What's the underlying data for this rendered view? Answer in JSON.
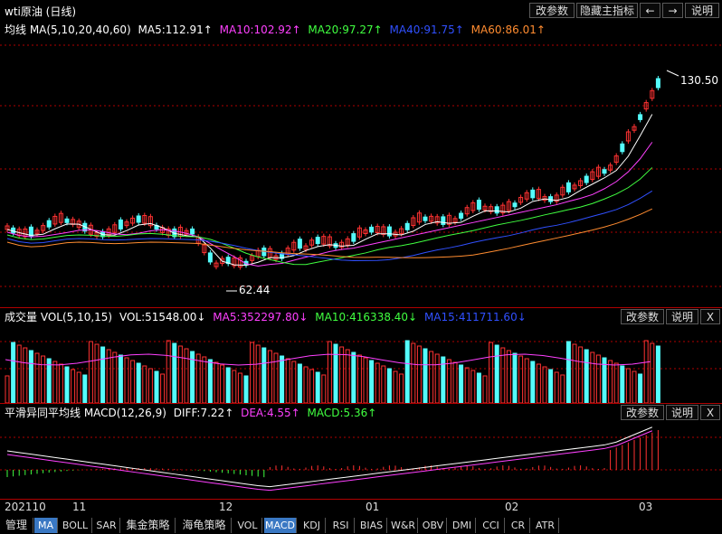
{
  "window": {
    "title": "wti原油 (日线)",
    "buttons": [
      "改参数",
      "隐藏主指标",
      "←",
      "→",
      "说明"
    ]
  },
  "main_panel": {
    "legend": [
      {
        "text": "均线 MA(5,10,20,40,60)",
        "color": "#ffffff"
      },
      {
        "text": "MA5:112.91↑",
        "color": "#ffffff"
      },
      {
        "text": "MA10:102.92↑",
        "color": "#ff40ff"
      },
      {
        "text": "MA20:97.27↑",
        "color": "#40ff40"
      },
      {
        "text": "MA40:91.75↑",
        "color": "#3050ff"
      },
      {
        "text": "MA60:86.01↑",
        "color": "#ff8c30"
      }
    ],
    "high_label": "130.50",
    "low_label": "62.44"
  },
  "volume_panel": {
    "legend": [
      {
        "text": "成交量 VOL(5,10,15)",
        "color": "#ffffff"
      },
      {
        "text": "VOL:51548.00↓",
        "color": "#ffffff"
      },
      {
        "text": "MA5:352297.80↓",
        "color": "#ff40ff"
      },
      {
        "text": "MA10:416338.40↓",
        "color": "#40ff40"
      },
      {
        "text": "MA15:411711.60↓",
        "color": "#3050ff"
      }
    ],
    "buttons": [
      "改参数",
      "说明",
      "X"
    ]
  },
  "macd_panel": {
    "legend": [
      {
        "text": "平滑异同平均线 MACD(12,26,9)",
        "color": "#ffffff"
      },
      {
        "text": "DIFF:7.22↑",
        "color": "#ffffff"
      },
      {
        "text": "DEA:4.55↑",
        "color": "#ff40ff"
      },
      {
        "text": "MACD:5.36↑",
        "color": "#40ff40"
      }
    ],
    "buttons": [
      "改参数",
      "说明",
      "X"
    ]
  },
  "x_axis": [
    "202110",
    "11",
    "12",
    "01",
    "02",
    "03"
  ],
  "tabs": [
    "管理",
    "MA",
    "BOLL",
    "SAR",
    "集金策略",
    "海龟策略",
    "VOL",
    "MACD",
    "KDJ",
    "RSI",
    "BIAS",
    "W&R",
    "OBV",
    "DMI",
    "CCI",
    "CR",
    "ATR"
  ],
  "active_tabs": [
    "MA",
    "MACD"
  ],
  "colors": {
    "up": "#ff3232",
    "down": "#54fcfc",
    "grid": "#b00000",
    "ma5": "#ffffff",
    "ma10": "#ff40ff",
    "ma20": "#40ff40",
    "ma40": "#3050ff",
    "ma60": "#ff8c30",
    "tab_active": "#3a78c3"
  }
}
